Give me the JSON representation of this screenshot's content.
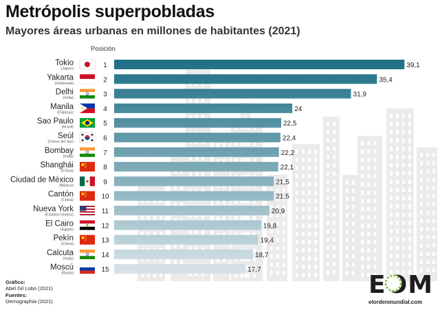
{
  "header": {
    "title": "Metrópolis superpobladas",
    "subtitle": "Mayores áreas urbanas en millones de habitantes (2021)",
    "position_label": "Posición"
  },
  "credits": {
    "graphic_label": "Gráfico:",
    "graphic_author": "Abel Gil Lobo (2021)",
    "sources_label": "Fuentes:",
    "sources_value": "Demographia (2021)"
  },
  "logo": {
    "letters": "EOM",
    "url": "elordenmundial.com"
  },
  "colors": {
    "bar_dark": "#1d6f85",
    "bar_light": "#d9e3e8",
    "skyline": "#e9e9e9"
  },
  "chart_data": {
    "type": "bar",
    "orientation": "horizontal",
    "title": "Metrópolis superpobladas",
    "subtitle": "Mayores áreas urbanas en millones de habitantes (2021)",
    "xlim": [
      0,
      40
    ],
    "categories": [
      "Tokio",
      "Yakarta",
      "Delhi",
      "Manila",
      "Sao Paulo",
      "Seúl",
      "Bombay",
      "Shanghái",
      "Ciudad de México",
      "Cantón",
      "Nueva York",
      "El Cairo",
      "Pekín",
      "Calcuta",
      "Moscú"
    ],
    "countries": [
      "(Japón)",
      "(Indonesia)",
      "(India)",
      "(Filipinas)",
      "(Brasil)",
      "(Corea del Sur)",
      "(India)",
      "(China)",
      "(México)",
      "(China)",
      "(Estados Unidos)",
      "(Egipto)",
      "(China)",
      "(India)",
      "(Rusia)"
    ],
    "flags": [
      "japan-flag",
      "indonesia-flag",
      "india-flag",
      "philippines-flag",
      "brazil-flag",
      "south-korea-flag",
      "india-flag",
      "china-flag",
      "mexico-flag",
      "china-flag",
      "usa-flag",
      "egypt-flag",
      "china-flag",
      "india-flag",
      "russia-flag"
    ],
    "positions": [
      "1",
      "2",
      "3",
      "4",
      "5",
      "6",
      "7",
      "8",
      "9",
      "10",
      "11",
      "12",
      "13",
      "14",
      "15"
    ],
    "values": [
      39.1,
      35.4,
      31.9,
      24,
      22.5,
      22.4,
      22.2,
      22.1,
      21.5,
      21.5,
      20.9,
      19.8,
      19.4,
      18.7,
      17.7
    ],
    "labels": [
      "39,1",
      "35,4",
      "31,9",
      "24",
      "22,5",
      "22,4",
      "22,2",
      "22,1",
      "21,5",
      "21,5",
      "20,9",
      "19,8",
      "19,4",
      "18,7",
      "17,7"
    ]
  }
}
